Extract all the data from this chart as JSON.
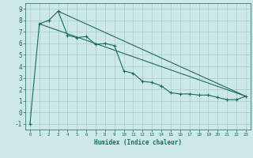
{
  "xlabel": "Humidex (Indice chaleur)",
  "ylabel": "",
  "xlim": [
    -0.5,
    23.5
  ],
  "ylim": [
    -1.5,
    9.5
  ],
  "bg_color": "#cde8e8",
  "grid_color": "#aacccc",
  "line_color": "#1a6b5a",
  "line1_x": [
    0,
    1,
    2,
    3,
    4,
    5,
    6,
    7,
    8,
    9,
    10,
    11,
    12,
    13,
    14,
    15,
    16,
    17,
    18,
    19,
    20,
    21,
    22,
    23
  ],
  "line1_y": [
    -1,
    7.7,
    8.0,
    8.8,
    6.7,
    6.5,
    6.6,
    5.9,
    6.0,
    5.8,
    3.6,
    3.4,
    2.7,
    2.6,
    2.3,
    1.7,
    1.6,
    1.6,
    1.5,
    1.5,
    1.3,
    1.1,
    1.1,
    1.4
  ],
  "line2_x": [
    1,
    23
  ],
  "line2_y": [
    7.7,
    1.4
  ],
  "line3_x": [
    3,
    23
  ],
  "line3_y": [
    8.8,
    1.4
  ],
  "xtick_vals": [
    0,
    1,
    2,
    3,
    4,
    5,
    6,
    7,
    8,
    9,
    10,
    11,
    12,
    13,
    14,
    15,
    16,
    17,
    18,
    19,
    20,
    21,
    22,
    23
  ],
  "xtick_labels": [
    "0",
    "1",
    "2",
    "3",
    "4",
    "5",
    "6",
    "7",
    "8",
    "9",
    "10",
    "11",
    "12",
    "13",
    "14",
    "15",
    "16",
    "17",
    "18",
    "19",
    "20",
    "21",
    "22",
    "23"
  ],
  "ytick_vals": [
    -1,
    0,
    1,
    2,
    3,
    4,
    5,
    6,
    7,
    8,
    9
  ],
  "ytick_labels": [
    "-1",
    "0",
    "1",
    "2",
    "3",
    "4",
    "5",
    "6",
    "7",
    "8",
    "9"
  ],
  "font_color": "#1a6b5a",
  "xlabel_fontsize": 5.5,
  "tick_fontsize_x": 4.2,
  "tick_fontsize_y": 5.5
}
